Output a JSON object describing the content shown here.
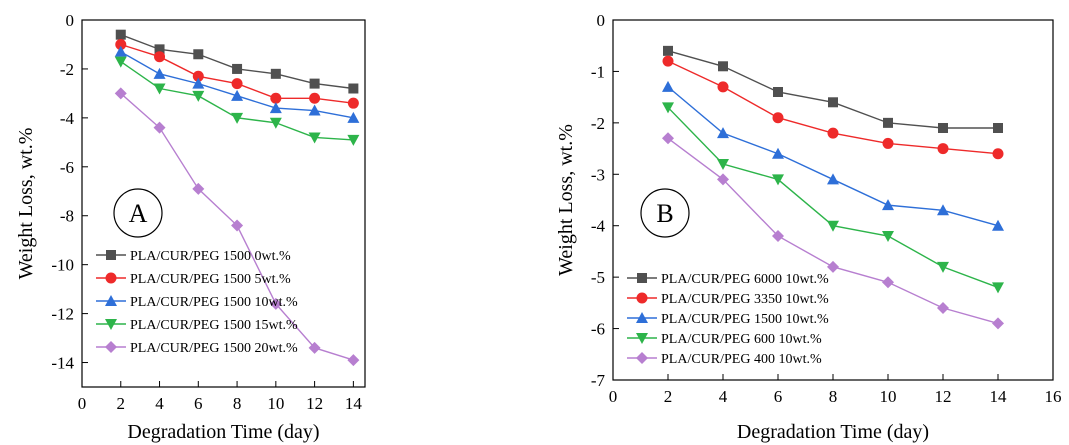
{
  "chart_data": [
    {
      "panel_label": "A",
      "type": "line",
      "xlabel": "Degradation Time (day)",
      "ylabel": "Weight Loss, wt.%",
      "xlim": [
        0,
        14.6
      ],
      "ylim": [
        -15,
        0
      ],
      "xticks": [
        0,
        2,
        4,
        6,
        8,
        10,
        12,
        14
      ],
      "yticks": [
        0,
        -2,
        -4,
        -6,
        -8,
        -10,
        -12,
        -14
      ],
      "legend_position": "bottom-left",
      "grid": false,
      "x": [
        2,
        4,
        6,
        8,
        10,
        12,
        14
      ],
      "series": [
        {
          "name": "PLA/CUR/PEG 1500 0wt.%",
          "color": "#505050",
          "marker": "square",
          "values": [
            -0.6,
            -1.2,
            -1.4,
            -2.0,
            -2.2,
            -2.6,
            -2.8
          ]
        },
        {
          "name": "PLA/CUR/PEG 1500 5wt.%",
          "color": "#ee2a2a",
          "marker": "circle",
          "values": [
            -1.0,
            -1.5,
            -2.3,
            -2.6,
            -3.2,
            -3.2,
            -3.4
          ]
        },
        {
          "name": "PLA/CUR/PEG 1500 10wt.%",
          "color": "#2e6fd8",
          "marker": "triangle-up",
          "values": [
            -1.3,
            -2.2,
            -2.6,
            -3.1,
            -3.6,
            -3.7,
            -4.0
          ]
        },
        {
          "name": "PLA/CUR/PEG 1500 15wt.%",
          "color": "#2db44a",
          "marker": "triangle-down",
          "values": [
            -1.7,
            -2.8,
            -3.1,
            -4.0,
            -4.2,
            -4.8,
            -4.9
          ]
        },
        {
          "name": "PLA/CUR/PEG 1500 20wt.%",
          "color": "#b77fd0",
          "marker": "diamond",
          "values": [
            -3.0,
            -4.4,
            -6.9,
            -8.4,
            -11.6,
            -13.4,
            -13.9
          ]
        }
      ]
    },
    {
      "panel_label": "B",
      "type": "line",
      "xlabel": "Degradation Time (day)",
      "ylabel": "Weight Loss, wt.%",
      "xlim": [
        0,
        16
      ],
      "ylim": [
        -7,
        0
      ],
      "xticks": [
        0,
        2,
        4,
        6,
        8,
        10,
        12,
        14,
        16
      ],
      "yticks": [
        0,
        -1,
        -2,
        -3,
        -4,
        -5,
        -6,
        -7
      ],
      "legend_position": "bottom-left",
      "grid": false,
      "x": [
        2,
        4,
        6,
        8,
        10,
        12,
        14
      ],
      "series": [
        {
          "name": "PLA/CUR/PEG 6000 10wt.%",
          "color": "#505050",
          "marker": "square",
          "values": [
            -0.6,
            -0.9,
            -1.4,
            -1.6,
            -2.0,
            -2.1,
            -2.1
          ]
        },
        {
          "name": "PLA/CUR/PEG 3350 10wt.%",
          "color": "#ee2a2a",
          "marker": "circle",
          "values": [
            -0.8,
            -1.3,
            -1.9,
            -2.2,
            -2.4,
            -2.5,
            -2.6
          ]
        },
        {
          "name": "PLA/CUR/PEG 1500 10wt.%",
          "color": "#2e6fd8",
          "marker": "triangle-up",
          "values": [
            -1.3,
            -2.2,
            -2.6,
            -3.1,
            -3.6,
            -3.7,
            -4.0
          ]
        },
        {
          "name": "PLA/CUR/PEG 600 10wt.%",
          "color": "#2db44a",
          "marker": "triangle-down",
          "values": [
            -1.7,
            -2.8,
            -3.1,
            -4.0,
            -4.2,
            -4.8,
            -5.2
          ]
        },
        {
          "name": "PLA/CUR/PEG 400 10wt.%",
          "color": "#b77fd0",
          "marker": "diamond",
          "values": [
            -2.3,
            -3.1,
            -4.2,
            -4.8,
            -5.1,
            -5.6,
            -5.9
          ]
        }
      ]
    }
  ]
}
